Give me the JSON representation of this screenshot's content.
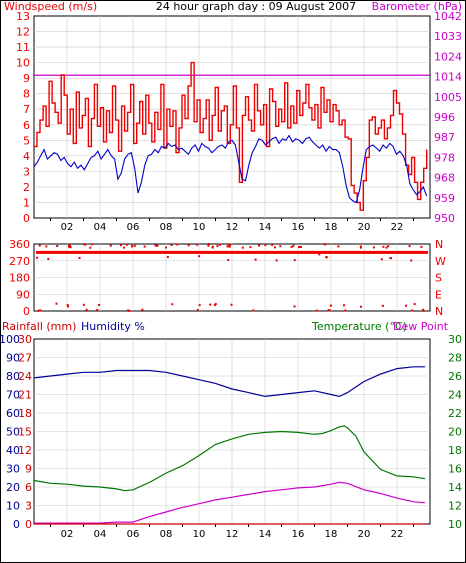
{
  "title": "24 hour graph day : 09 August 2007",
  "colors": {
    "windspeed": "#ee0000",
    "windavg": "#0000cc",
    "barometer": "#cc00cc",
    "temperature": "#007700",
    "dewpoint": "#cc00cc",
    "humidity": "#000099",
    "rainfall": "#cc0000",
    "winddir": "#ee0000",
    "grid": "#cccccc",
    "axis": "#000000"
  },
  "chart_data": [
    {
      "type": "line",
      "name": "wind-barometer",
      "left_label": "Windspeed (m/s)",
      "right_label": "Barometer (hPa)",
      "left_ticks": [
        "0",
        "1",
        "2",
        "3",
        "4",
        "5",
        "6",
        "7",
        "8",
        "9",
        "10",
        "11",
        "12",
        "13"
      ],
      "right_ticks": [
        "950",
        "959",
        "968",
        "978",
        "987",
        "996",
        "1005",
        "1014",
        "1024",
        "1033",
        "1042"
      ],
      "x_ticks": [
        "02",
        "04",
        "06",
        "08",
        "10",
        "12",
        "14",
        "16",
        "18",
        "20",
        "22"
      ],
      "ylim": [
        0,
        13
      ],
      "barometer_hpa": 1015,
      "series": [
        {
          "key": "gust",
          "values": [
            4.6,
            5.5,
            6.3,
            7.2,
            5.9,
            8.8,
            7.4,
            6.8,
            6.1,
            9.2,
            7.9,
            5.4,
            7.0,
            4.8,
            8.1,
            5.8,
            6.6,
            7.7,
            4.6,
            6.4,
            8.6,
            5.9,
            7.1,
            4.9,
            6.9,
            5.5,
            8.5,
            6.3,
            4.3,
            7.2,
            5.6,
            6.8,
            8.6,
            4.8,
            6.1,
            7.5,
            5.4,
            7.9,
            6.1,
            4.9,
            6.8,
            5.7,
            8.6,
            4.5,
            7.0,
            5.9,
            6.9,
            4.2,
            5.8,
            7.9,
            6.4,
            8.5,
            10.0,
            6.2,
            7.6,
            5.5,
            6.4,
            7.6,
            5.0,
            6.6,
            8.4,
            5.6,
            6.9,
            7.2,
            4.8,
            6.0,
            8.5,
            5.8,
            2.3,
            6.6,
            7.8,
            6.3,
            5.6,
            8.6,
            6.9,
            6.0,
            7.3,
            4.6,
            8.3,
            7.5,
            5.9,
            7.0,
            6.2,
            8.7,
            5.8,
            7.2,
            6.1,
            8.2,
            6.6,
            7.4,
            8.6,
            7.1,
            6.3,
            7.3,
            5.8,
            8.4,
            6.8,
            7.6,
            6.2,
            7.3,
            6.9,
            6.0,
            6.3,
            5.2,
            5.1,
            2.1,
            1.6,
            1.0,
            0.5,
            2.4,
            3.9,
            6.3,
            6.5,
            5.4,
            5.8,
            6.3,
            5.1,
            5.8,
            6.6,
            8.2,
            7.4,
            6.7,
            5.4,
            3.4,
            2.8,
            3.9,
            2.3,
            1.2,
            2.3,
            3.2,
            4.4
          ],
          "x_start": 0.0,
          "x_end": 23.8
        },
        {
          "key": "average",
          "values": [
            3.3,
            3.6,
            4.0,
            4.4,
            3.8,
            4.0,
            4.2,
            4.1,
            3.7,
            3.9,
            3.5,
            3.3,
            3.6,
            3.2,
            3.4,
            3.1,
            3.5,
            3.9,
            4.0,
            4.3,
            3.8,
            4.1,
            4.4,
            4.0,
            3.8,
            2.5,
            2.9,
            3.8,
            4.1,
            4.2,
            3.2,
            1.6,
            2.3,
            3.4,
            4.0,
            4.1,
            4.4,
            4.2,
            4.6,
            4.5,
            4.8,
            4.6,
            4.7,
            4.4,
            4.5,
            4.3,
            4.1,
            4.5,
            4.7,
            4.3,
            4.8,
            4.6,
            4.5,
            4.2,
            4.4,
            4.6,
            4.7,
            4.5,
            4.9,
            5.0,
            4.7,
            3.6,
            2.5,
            2.4,
            3.4,
            4.2,
            4.6,
            5.1,
            5.0,
            4.7,
            4.9,
            5.1,
            5.2,
            4.8,
            5.1,
            5.0,
            5.3,
            4.9,
            5.1,
            5.0,
            4.8,
            5.1,
            5.2,
            4.9,
            4.7,
            4.5,
            4.7,
            4.3,
            4.6,
            4.4,
            4.4,
            4.2,
            3.3,
            2.1,
            1.3,
            1.1,
            1.0,
            1.8,
            3.2,
            4.4,
            4.6,
            4.7,
            4.5,
            4.3,
            4.7,
            4.5,
            4.8,
            4.6,
            4.1,
            4.3,
            4.0,
            3.4,
            2.2,
            1.8,
            1.5,
            1.7,
            2.0,
            1.4
          ],
          "x_start": 0.0,
          "x_end": 23.8
        }
      ]
    },
    {
      "type": "scatter",
      "name": "wind-direction",
      "left_ticks": [
        "0",
        "90",
        "180",
        "270",
        "360"
      ],
      "right_ticks": [
        "N",
        "E",
        "S",
        "W",
        "N"
      ],
      "ylim": [
        0,
        360
      ],
      "main_bearing": 315
    },
    {
      "type": "line",
      "name": "temp-humidity-rain",
      "left_label_1": "Rainfall (mm)",
      "left_label_2": "Humidity %",
      "right_label_1": "Temperature (°C)",
      "right_label_2": "Dew Point",
      "rain_ticks": [
        "0",
        "3",
        "6",
        "9",
        "12",
        "15",
        "18",
        "21",
        "24",
        "27",
        "30"
      ],
      "humidity_ticks": [
        "0",
        "10",
        "20",
        "30",
        "40",
        "50",
        "60",
        "70",
        "80",
        "90",
        "100"
      ],
      "temp_ticks": [
        "10",
        "12",
        "14",
        "16",
        "18",
        "20",
        "22",
        "24",
        "26",
        "28",
        "30"
      ],
      "x_ticks": [
        "02",
        "04",
        "06",
        "08",
        "10",
        "12",
        "14",
        "16",
        "18",
        "20",
        "22"
      ],
      "series": [
        {
          "key": "temperature",
          "unit": "C",
          "x": [
            0,
            1,
            2,
            3,
            4,
            5,
            5.5,
            6,
            7,
            8,
            9,
            10,
            11,
            12,
            13,
            14,
            15,
            16,
            17,
            17.5,
            18,
            18.5,
            18.8,
            19,
            19.5,
            20,
            21,
            22,
            23,
            23.7
          ],
          "values": [
            14.7,
            14.4,
            14.3,
            14.1,
            14.0,
            13.8,
            13.6,
            13.7,
            14.5,
            15.5,
            16.3,
            17.4,
            18.6,
            19.2,
            19.7,
            19.9,
            20.0,
            19.9,
            19.7,
            19.8,
            20.1,
            20.5,
            20.6,
            20.4,
            19.5,
            17.8,
            15.9,
            15.2,
            15.1,
            14.9
          ]
        },
        {
          "key": "dewpoint",
          "unit": "C",
          "x": [
            0,
            1,
            2,
            3,
            4,
            5,
            6,
            7,
            8,
            9,
            10,
            11,
            12,
            13,
            14,
            15,
            16,
            17,
            18,
            18.5,
            19,
            20,
            21,
            22,
            23,
            23.7
          ],
          "values": [
            10.1,
            10.1,
            10.1,
            10.1,
            10.1,
            10.2,
            10.2,
            10.8,
            11.3,
            11.8,
            12.2,
            12.6,
            12.9,
            13.2,
            13.5,
            13.7,
            13.9,
            14.0,
            14.3,
            14.5,
            14.4,
            13.7,
            13.3,
            12.8,
            12.4,
            12.3
          ]
        },
        {
          "key": "humidity",
          "unit": "%",
          "x": [
            0,
            1,
            2,
            3,
            4,
            5,
            6,
            7,
            8,
            9,
            10,
            11,
            12,
            13,
            14,
            15,
            16,
            17,
            18,
            18.5,
            19,
            20,
            21,
            22,
            23,
            23.7
          ],
          "values": [
            79,
            80,
            81,
            82,
            82,
            83,
            83,
            83,
            82,
            80,
            78,
            76,
            73,
            71,
            69,
            70,
            71,
            72,
            70,
            69,
            71,
            77,
            81,
            84,
            85,
            85
          ]
        },
        {
          "key": "rainfall",
          "unit": "mm",
          "x": [
            0,
            23.7
          ],
          "values": [
            0,
            0
          ]
        }
      ]
    }
  ]
}
